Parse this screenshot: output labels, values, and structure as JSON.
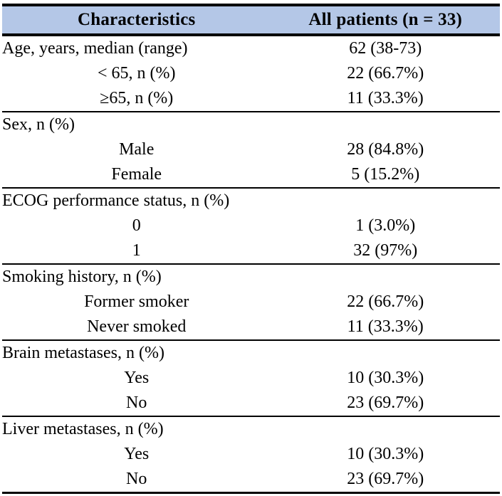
{
  "table": {
    "columns": [
      {
        "label": "Characteristics"
      },
      {
        "label": "All patients (n = 33)"
      }
    ],
    "rows": [
      {
        "label": "Age, years, median (range)",
        "value": "62 (38-73)"
      },
      {
        "label": "< 65, n (%)",
        "value": "22 (66.7%)"
      },
      {
        "label": "≥65, n (%)",
        "value": "11 (33.3%)"
      },
      {
        "label": "Sex, n (%)",
        "value": ""
      },
      {
        "label": "Male",
        "value": "28 (84.8%)"
      },
      {
        "label": "Female",
        "value": "5 (15.2%)"
      },
      {
        "label": "ECOG performance status, n (%)",
        "value": ""
      },
      {
        "label": "0",
        "value": "1 (3.0%)"
      },
      {
        "label": "1",
        "value": "32 (97%)"
      },
      {
        "label": "Smoking history, n (%)",
        "value": ""
      },
      {
        "label": "Former smoker",
        "value": "22 (66.7%)"
      },
      {
        "label": "Never smoked",
        "value": "11 (33.3%)"
      },
      {
        "label": "Brain metastases, n (%)",
        "value": ""
      },
      {
        "label": "Yes",
        "value": "10 (30.3%)"
      },
      {
        "label": "No",
        "value": "23 (69.7%)"
      },
      {
        "label": "Liver metastases, n (%)",
        "value": ""
      },
      {
        "label": "Yes",
        "value": "10 (30.3%)"
      },
      {
        "label": "No",
        "value": "23 (69.7%)"
      }
    ],
    "styles": {
      "header_bg": "#b4c7e7",
      "border_color": "#000000",
      "text_color": "#000000"
    }
  }
}
